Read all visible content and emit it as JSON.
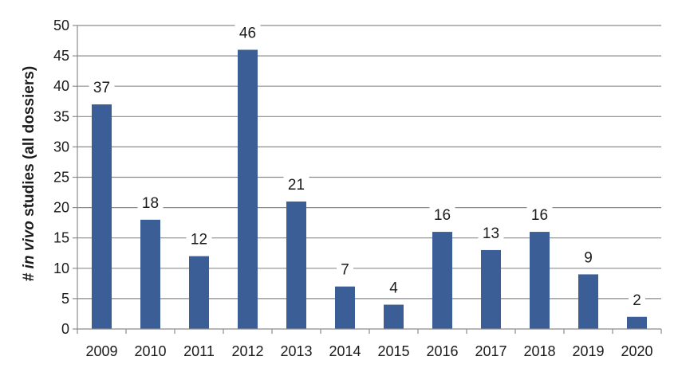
{
  "chart_data": {
    "type": "bar",
    "title": "",
    "xlabel": "",
    "ylabel": {
      "prefix": "# ",
      "italic": "in vivo",
      "suffix": " studies (all dossiers)"
    },
    "categories": [
      "2009",
      "2010",
      "2011",
      "2012",
      "2013",
      "2014",
      "2015",
      "2016",
      "2017",
      "2018",
      "2019",
      "2020"
    ],
    "values": [
      37,
      18,
      12,
      46,
      21,
      7,
      4,
      16,
      13,
      16,
      9,
      2
    ],
    "ylim": [
      0,
      50
    ],
    "yticks": [
      0,
      5,
      10,
      15,
      20,
      25,
      30,
      35,
      40,
      45,
      50
    ],
    "grid": true,
    "data_labels": true,
    "bar_color": "#3B5E96",
    "grid_color": "#8c8c8c"
  }
}
